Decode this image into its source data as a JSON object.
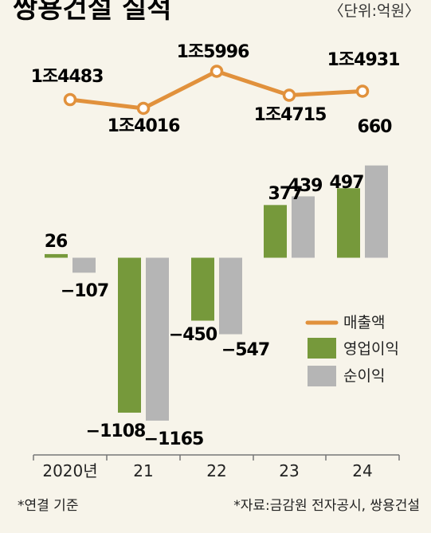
{
  "title": "쌍용건설 실적",
  "unit_note": "〈단위:억원〉",
  "footnote_left": "*연결 기준",
  "footnote_right": "*자료:금감원 전자공시, 쌍용건설",
  "colors": {
    "revenue": "#e1913c",
    "operating": "#76993b",
    "net": "#b5b5b5",
    "background": "#f7f4ea"
  },
  "chart_data": {
    "type": "bar",
    "categories": [
      "2020년",
      "21",
      "22",
      "23",
      "24"
    ],
    "line": {
      "name": "매출액",
      "values": [
        14483,
        14016,
        15996,
        14715,
        14931
      ],
      "labels": [
        "1조4483",
        "1조4016",
        "1조5996",
        "1조4715",
        "1조4931"
      ]
    },
    "series": [
      {
        "name": "영업이익",
        "values": [
          26,
          -1108,
          -450,
          377,
          497
        ],
        "labels": [
          "26",
          "−1108",
          "−450",
          "377",
          "497"
        ]
      },
      {
        "name": "순이익",
        "values": [
          -107,
          -1165,
          -547,
          439,
          660
        ],
        "labels": [
          "−107",
          "−1165",
          "−547",
          "439",
          "660"
        ]
      }
    ],
    "legend": [
      "매출액",
      "영업이익",
      "순이익"
    ],
    "legend_position": "right"
  }
}
